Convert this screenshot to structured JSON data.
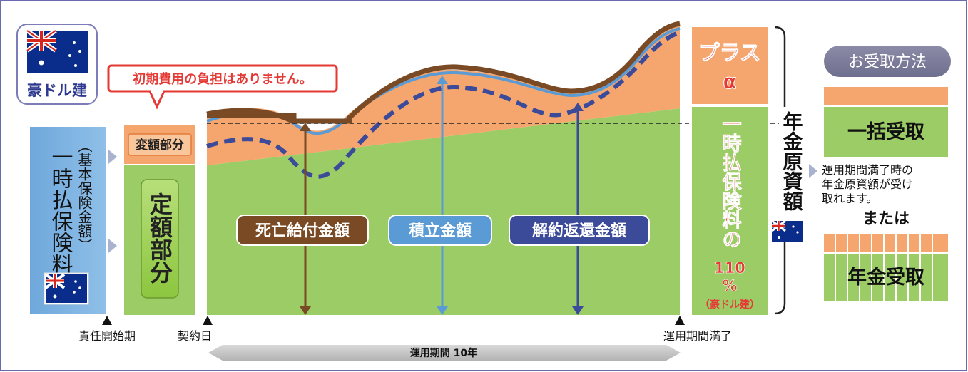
{
  "badge": {
    "label": "豪ドル建"
  },
  "note": {
    "text": "初期費用の負担はありません。"
  },
  "premium": {
    "main": "一時払保険料",
    "sub": "（基本保険金額）"
  },
  "parts": {
    "variable": "変額部分",
    "fixed": "定額部分"
  },
  "amounts": {
    "death": "死亡給付金額",
    "accumulated": "積立金額",
    "surrender": "解約返還金額"
  },
  "right_box": {
    "plus": "プラス",
    "alpha": "α",
    "main": "一時払保険料の",
    "percent": "110",
    "percent_sign": "%",
    "currency": "（豪ドル建）"
  },
  "fund": {
    "label": "年金原資額"
  },
  "receipt": {
    "title": "お受取方法",
    "lump": "一括受取",
    "desc": [
      "運用期間満了時の",
      "年金原資額が受け",
      "取れます。"
    ],
    "or": "または",
    "pension": "年金受取"
  },
  "timeline": {
    "start": "責任開始期",
    "contract": "契約日",
    "end": "運用期間満了",
    "period": "運用期間 10年"
  },
  "colors": {
    "green": "#9ccc65",
    "orange": "#f5a66e",
    "brown": "#7a4a24",
    "blue_light": "#5b9bd5",
    "navy": "#3c4a9a",
    "red": "#e53935",
    "lightblue_box": "#6fa8dc"
  }
}
